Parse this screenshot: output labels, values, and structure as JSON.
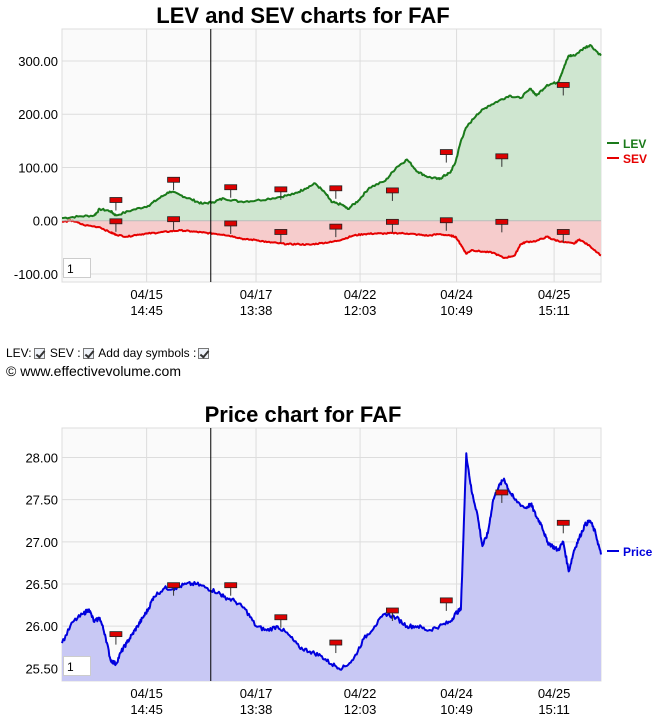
{
  "chart_data": [
    {
      "type": "area",
      "title": "LEV and SEV charts for FAF",
      "x_ticks": [
        {
          "line1": "04/15",
          "line2": "14:45",
          "t": 0.157
        },
        {
          "line1": "04/17",
          "line2": "13:38",
          "t": 0.36
        },
        {
          "line1": "04/22",
          "line2": "12:03",
          "t": 0.553
        },
        {
          "line1": "04/24",
          "line2": "10:49",
          "t": 0.732
        },
        {
          "line1": "04/25",
          "line2": "15:11",
          "t": 0.913
        }
      ],
      "cursor_t": 0.276,
      "y_ticks": [
        "300.00",
        "200.00",
        "100.00",
        "0.00",
        "-100.00"
      ],
      "ylim": [
        -115,
        360
      ],
      "grid": true,
      "legend_position": "right",
      "zoom_box_value": "1",
      "series": [
        {
          "name": "LEV",
          "color": "#1a7a1a",
          "fill": "#cfe6d0",
          "points": [
            [
              0.0,
              5
            ],
            [
              0.03,
              8
            ],
            [
              0.06,
              10
            ],
            [
              0.07,
              22
            ],
            [
              0.09,
              18
            ],
            [
              0.1,
              10
            ],
            [
              0.13,
              20
            ],
            [
              0.16,
              28
            ],
            [
              0.18,
              42
            ],
            [
              0.2,
              55
            ],
            [
              0.22,
              48
            ],
            [
              0.24,
              40
            ],
            [
              0.26,
              32
            ],
            [
              0.28,
              35
            ],
            [
              0.3,
              42
            ],
            [
              0.33,
              36
            ],
            [
              0.36,
              38
            ],
            [
              0.4,
              44
            ],
            [
              0.43,
              50
            ],
            [
              0.45,
              60
            ],
            [
              0.47,
              70
            ],
            [
              0.49,
              50
            ],
            [
              0.5,
              35
            ],
            [
              0.52,
              30
            ],
            [
              0.53,
              22
            ],
            [
              0.55,
              38
            ],
            [
              0.57,
              62
            ],
            [
              0.6,
              75
            ],
            [
              0.62,
              100
            ],
            [
              0.64,
              115
            ],
            [
              0.66,
              92
            ],
            [
              0.68,
              82
            ],
            [
              0.7,
              78
            ],
            [
              0.71,
              85
            ],
            [
              0.72,
              90
            ],
            [
              0.73,
              110
            ],
            [
              0.74,
              150
            ],
            [
              0.75,
              175
            ],
            [
              0.77,
              200
            ],
            [
              0.79,
              215
            ],
            [
              0.81,
              225
            ],
            [
              0.83,
              235
            ],
            [
              0.85,
              230
            ],
            [
              0.87,
              248
            ],
            [
              0.88,
              235
            ],
            [
              0.9,
              255
            ],
            [
              0.92,
              260
            ],
            [
              0.93,
              285
            ],
            [
              0.94,
              310
            ],
            [
              0.95,
              310
            ],
            [
              0.97,
              325
            ],
            [
              0.98,
              330
            ],
            [
              1.0,
              310
            ]
          ]
        },
        {
          "name": "SEV",
          "color": "#e60000",
          "fill": "#f6cccc",
          "points": [
            [
              0.0,
              -2
            ],
            [
              0.02,
              0
            ],
            [
              0.04,
              -8
            ],
            [
              0.07,
              -12
            ],
            [
              0.09,
              -22
            ],
            [
              0.1,
              -26
            ],
            [
              0.12,
              -30
            ],
            [
              0.14,
              -26
            ],
            [
              0.16,
              -24
            ],
            [
              0.18,
              -22
            ],
            [
              0.2,
              -20
            ],
            [
              0.22,
              -18
            ],
            [
              0.24,
              -20
            ],
            [
              0.26,
              -22
            ],
            [
              0.28,
              -24
            ],
            [
              0.3,
              -26
            ],
            [
              0.32,
              -30
            ],
            [
              0.34,
              -35
            ],
            [
              0.36,
              -36
            ],
            [
              0.38,
              -40
            ],
            [
              0.4,
              -42
            ],
            [
              0.42,
              -44
            ],
            [
              0.44,
              -44
            ],
            [
              0.46,
              -45
            ],
            [
              0.48,
              -42
            ],
            [
              0.5,
              -40
            ],
            [
              0.52,
              -35
            ],
            [
              0.54,
              -28
            ],
            [
              0.56,
              -25
            ],
            [
              0.58,
              -24
            ],
            [
              0.6,
              -24
            ],
            [
              0.62,
              -23
            ],
            [
              0.64,
              -24
            ],
            [
              0.66,
              -26
            ],
            [
              0.68,
              -28
            ],
            [
              0.7,
              -25
            ],
            [
              0.72,
              -28
            ],
            [
              0.73,
              -30
            ],
            [
              0.74,
              -45
            ],
            [
              0.75,
              -62
            ],
            [
              0.76,
              -55
            ],
            [
              0.78,
              -58
            ],
            [
              0.8,
              -60
            ],
            [
              0.82,
              -70
            ],
            [
              0.84,
              -65
            ],
            [
              0.85,
              -45
            ],
            [
              0.86,
              -40
            ],
            [
              0.88,
              -38
            ],
            [
              0.9,
              -30
            ],
            [
              0.91,
              -35
            ],
            [
              0.93,
              -40
            ],
            [
              0.95,
              -43
            ],
            [
              0.96,
              -35
            ],
            [
              0.98,
              -48
            ],
            [
              1.0,
              -65
            ]
          ]
        }
      ],
      "day_markers": [
        0.1,
        0.207,
        0.313,
        0.406,
        0.508,
        0.613,
        0.713,
        0.816,
        0.93
      ]
    },
    {
      "type": "area",
      "title": "Price chart for FAF",
      "x_ticks": [
        {
          "line1": "04/15",
          "line2": "14:45",
          "t": 0.157
        },
        {
          "line1": "04/17",
          "line2": "13:38",
          "t": 0.36
        },
        {
          "line1": "04/22",
          "line2": "12:03",
          "t": 0.553
        },
        {
          "line1": "04/24",
          "line2": "10:49",
          "t": 0.732
        },
        {
          "line1": "04/25",
          "line2": "15:11",
          "t": 0.913
        }
      ],
      "cursor_t": 0.276,
      "y_ticks": [
        "28.00",
        "27.50",
        "27.00",
        "26.50",
        "26.00",
        "25.50"
      ],
      "ylim": [
        25.35,
        28.35
      ],
      "grid": true,
      "legend_position": "right",
      "zoom_box_value": "1",
      "series": [
        {
          "name": "Price",
          "color": "#0000dd",
          "fill": "#c8c8f4",
          "points": [
            [
              0.0,
              25.8
            ],
            [
              0.02,
              26.05
            ],
            [
              0.04,
              26.15
            ],
            [
              0.05,
              26.2
            ],
            [
              0.06,
              26.05
            ],
            [
              0.07,
              26.1
            ],
            [
              0.08,
              25.9
            ],
            [
              0.09,
              25.6
            ],
            [
              0.1,
              25.55
            ],
            [
              0.11,
              25.7
            ],
            [
              0.12,
              25.8
            ],
            [
              0.13,
              25.9
            ],
            [
              0.14,
              26.0
            ],
            [
              0.15,
              26.1
            ],
            [
              0.16,
              26.2
            ],
            [
              0.17,
              26.35
            ],
            [
              0.19,
              26.45
            ],
            [
              0.21,
              26.45
            ],
            [
              0.23,
              26.5
            ],
            [
              0.25,
              26.5
            ],
            [
              0.27,
              26.45
            ],
            [
              0.29,
              26.4
            ],
            [
              0.3,
              26.35
            ],
            [
              0.32,
              26.3
            ],
            [
              0.34,
              26.2
            ],
            [
              0.36,
              26.0
            ],
            [
              0.38,
              25.95
            ],
            [
              0.4,
              26.0
            ],
            [
              0.42,
              25.9
            ],
            [
              0.44,
              25.75
            ],
            [
              0.46,
              25.7
            ],
            [
              0.48,
              25.65
            ],
            [
              0.5,
              25.55
            ],
            [
              0.52,
              25.5
            ],
            [
              0.54,
              25.6
            ],
            [
              0.56,
              25.85
            ],
            [
              0.58,
              26.0
            ],
            [
              0.6,
              26.15
            ],
            [
              0.62,
              26.1
            ],
            [
              0.64,
              26.0
            ],
            [
              0.66,
              26.0
            ],
            [
              0.68,
              25.95
            ],
            [
              0.7,
              26.0
            ],
            [
              0.72,
              26.05
            ],
            [
              0.73,
              26.15
            ],
            [
              0.74,
              26.2
            ],
            [
              0.75,
              28.05
            ],
            [
              0.76,
              27.6
            ],
            [
              0.77,
              27.35
            ],
            [
              0.78,
              26.95
            ],
            [
              0.79,
              27.1
            ],
            [
              0.8,
              27.5
            ],
            [
              0.81,
              27.65
            ],
            [
              0.82,
              27.75
            ],
            [
              0.83,
              27.6
            ],
            [
              0.84,
              27.5
            ],
            [
              0.86,
              27.4
            ],
            [
              0.87,
              27.45
            ],
            [
              0.88,
              27.3
            ],
            [
              0.89,
              27.2
            ],
            [
              0.9,
              27.0
            ],
            [
              0.91,
              26.95
            ],
            [
              0.92,
              26.9
            ],
            [
              0.93,
              27.0
            ],
            [
              0.94,
              26.65
            ],
            [
              0.95,
              26.9
            ],
            [
              0.96,
              27.05
            ],
            [
              0.97,
              27.2
            ],
            [
              0.98,
              27.25
            ],
            [
              0.99,
              27.1
            ],
            [
              1.0,
              26.85
            ]
          ]
        }
      ],
      "day_markers": [
        0.1,
        0.207,
        0.313,
        0.406,
        0.508,
        0.613,
        0.713,
        0.816,
        0.93
      ]
    }
  ],
  "controls": {
    "lev_label": "LEV:",
    "sev_label": "SEV :",
    "day_symbols_label": "Add day symbols :",
    "copyright": "© www.effectivevolume.com"
  }
}
